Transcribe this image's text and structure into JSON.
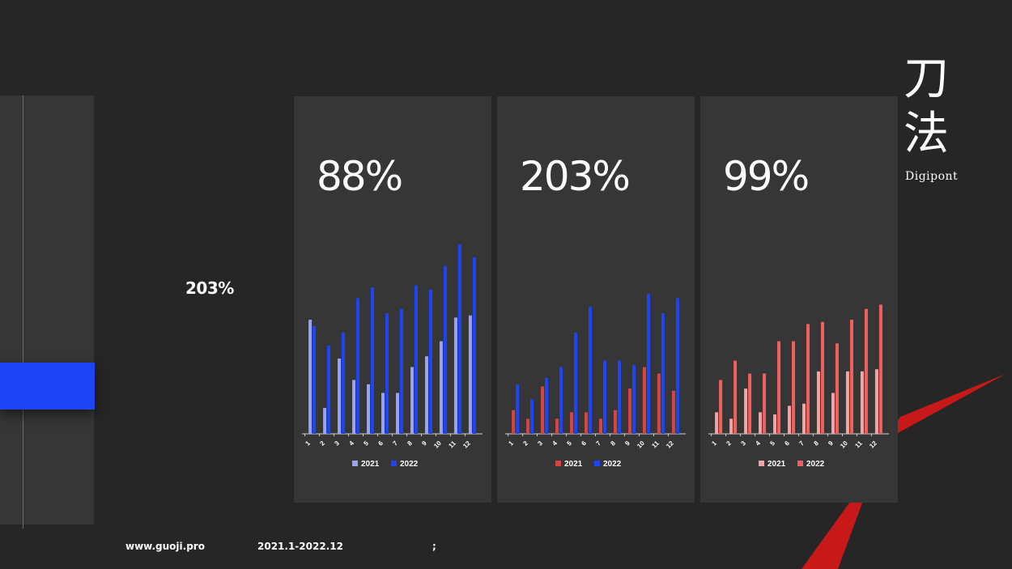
{
  "colors": {
    "background": "#262626",
    "panel": "#363636",
    "accent_blue": "#1f44f5",
    "light_blue": "#9aa3ee",
    "red": "#d64545",
    "pink": "#f2a3a3",
    "coral": "#f06060",
    "stripe_red": "#c8191a"
  },
  "side_value": "203%",
  "logo": {
    "chinese_line1": "刀",
    "chinese_line2": "法",
    "english": "Digipont"
  },
  "footer": {
    "website": "www.guoji.pro",
    "period": "2021.1-2022.12",
    "note": ";"
  },
  "cards": [
    {
      "percent": "88%"
    },
    {
      "percent": "203%"
    },
    {
      "percent": "99%"
    }
  ],
  "chart_data": [
    {
      "type": "bar",
      "categories": [
        "1",
        "2",
        "3",
        "4",
        "5",
        "6",
        "7",
        "8",
        "9",
        "10",
        "11",
        "12"
      ],
      "ylim": [
        0,
        100
      ],
      "series": [
        {
          "name": "2021",
          "color": "#9aa3ee",
          "values": [
            53,
            12,
            35,
            25,
            23,
            19,
            19,
            31,
            36,
            43,
            54,
            55
          ]
        },
        {
          "name": "2022",
          "color": "#1f44f5",
          "values": [
            50,
            41,
            47,
            63,
            68,
            56,
            58,
            69,
            67,
            78,
            88,
            82
          ]
        }
      ]
    },
    {
      "type": "bar",
      "categories": [
        "1",
        "2",
        "3",
        "4",
        "5",
        "6",
        "7",
        "8",
        "9",
        "10",
        "11",
        "12"
      ],
      "ylim": [
        0,
        100
      ],
      "series": [
        {
          "name": "2021",
          "color": "#d64545",
          "values": [
            11,
            7,
            22,
            7,
            10,
            10,
            7,
            11,
            21,
            31,
            28,
            20
          ]
        },
        {
          "name": "2022",
          "color": "#1f44f5",
          "values": [
            23,
            16,
            26,
            31,
            47,
            59,
            34,
            34,
            32,
            65,
            56,
            63
          ]
        }
      ]
    },
    {
      "type": "bar",
      "categories": [
        "1",
        "2",
        "3",
        "4",
        "5",
        "6",
        "7",
        "8",
        "9",
        "10",
        "11",
        "12"
      ],
      "ylim": [
        0,
        100
      ],
      "series": [
        {
          "name": "2021",
          "color": "#f2a3a3",
          "values": [
            10,
            7,
            21,
            10,
            9,
            13,
            14,
            29,
            19,
            29,
            29,
            30
          ]
        },
        {
          "name": "2022",
          "color": "#f06060",
          "values": [
            25,
            34,
            28,
            28,
            43,
            43,
            51,
            52,
            42,
            53,
            58,
            60
          ]
        }
      ]
    }
  ]
}
